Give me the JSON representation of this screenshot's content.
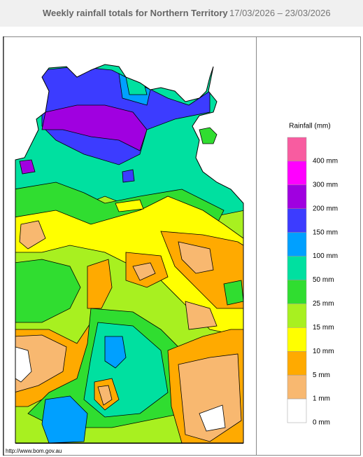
{
  "header": {
    "title": "Weekly rainfall totals for Northern Territory",
    "date_range": "17/03/2026 – 23/03/2026"
  },
  "legend": {
    "title": "Rainfall (mm)",
    "items": [
      {
        "label": "400 mm",
        "color": "#f85ca0"
      },
      {
        "label": "300 mm",
        "color": "#ff00ff"
      },
      {
        "label": "200 mm",
        "color": "#a000e0"
      },
      {
        "label": "150 mm",
        "color": "#3c3cff"
      },
      {
        "label": "100 mm",
        "color": "#00a0ff"
      },
      {
        "label": "50 mm",
        "color": "#00e0a0"
      },
      {
        "label": "25 mm",
        "color": "#30dd30"
      },
      {
        "label": "15 mm",
        "color": "#a8f020"
      },
      {
        "label": "10 mm",
        "color": "#ffff00"
      },
      {
        "label": "5 mm",
        "color": "#ffaa00"
      },
      {
        "label": "1 mm",
        "color": "#f8b870"
      },
      {
        "label": "0 mm",
        "color": "#ffffff"
      }
    ]
  },
  "map": {
    "source": "http://www.bom.gov.au"
  }
}
